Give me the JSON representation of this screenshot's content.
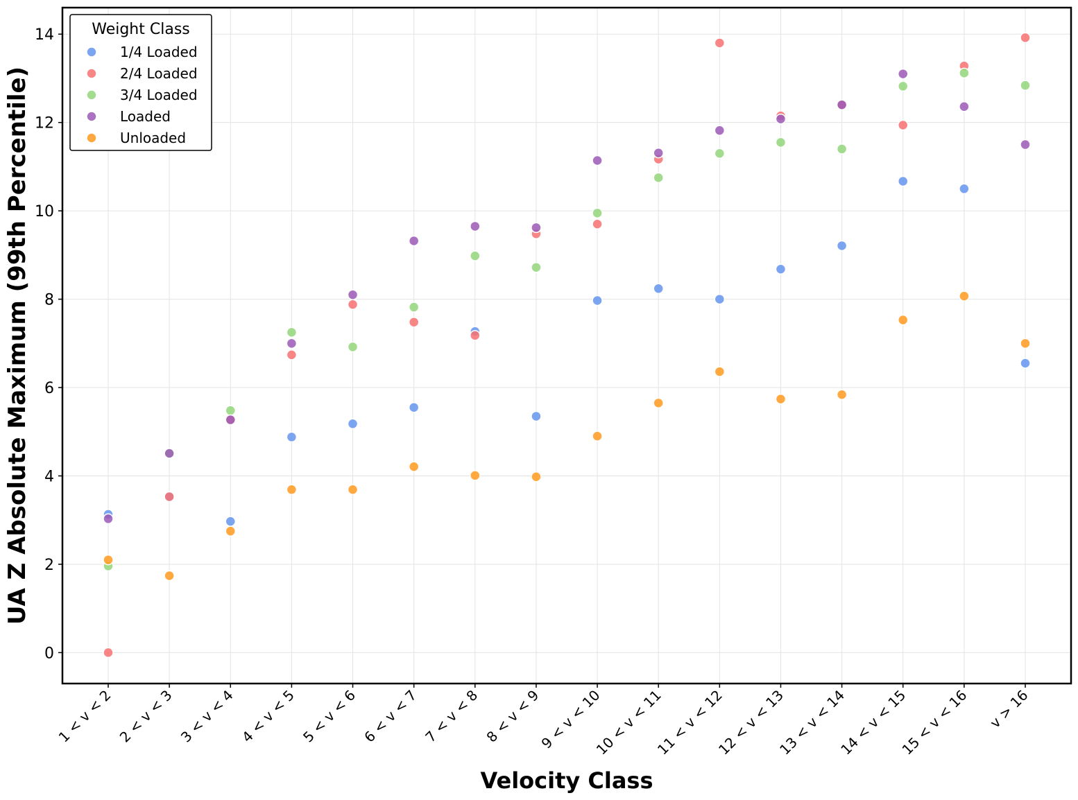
{
  "chart_data": {
    "type": "scatter",
    "xlabel": "Velocity Class",
    "ylabel": "UA Z Absolute Maximum (99th Percentile)",
    "ylim": [
      -0.7,
      14.6
    ],
    "yticks": [
      "0",
      "2",
      "4",
      "6",
      "8",
      "10",
      "12",
      "14"
    ],
    "grid": true,
    "categories": [
      "1 < v < 2",
      "2 < v < 3",
      "3 < v < 4",
      "4 < v < 5",
      "5 < v < 6",
      "6 < v < 7",
      "7 < v < 8",
      "8 < v < 9",
      "9 < v < 10",
      "10 < v < 11",
      "11 < v < 12",
      "12 < v < 13",
      "13 < v < 14",
      "14 < v < 15",
      "15 < v < 16",
      "v > 16"
    ],
    "legend": {
      "title": "Weight Class",
      "position": "top-left"
    },
    "series": [
      {
        "name": "1/4 Loaded",
        "color": "#6495ed",
        "values": [
          3.13,
          3.53,
          2.97,
          4.88,
          5.18,
          5.55,
          7.27,
          5.35,
          7.97,
          8.24,
          8.0,
          8.68,
          9.21,
          10.67,
          10.5,
          6.55
        ]
      },
      {
        "name": "2/4 Loaded",
        "color": "#f87171",
        "values": [
          0.0,
          3.53,
          5.27,
          6.74,
          7.88,
          7.48,
          7.18,
          9.48,
          9.7,
          11.17,
          13.8,
          12.15,
          12.4,
          11.94,
          13.28,
          13.92
        ]
      },
      {
        "name": "3/4 Loaded",
        "color": "#93d67a",
        "values": [
          1.96,
          4.51,
          5.48,
          7.25,
          6.92,
          7.82,
          8.98,
          8.72,
          9.95,
          10.75,
          11.3,
          11.55,
          11.4,
          12.82,
          13.12,
          12.84
        ]
      },
      {
        "name": "Loaded",
        "color": "#9b59b6",
        "values": [
          3.03,
          4.51,
          5.27,
          7.0,
          8.1,
          9.32,
          9.65,
          9.62,
          11.14,
          11.31,
          11.82,
          12.08,
          12.4,
          13.1,
          12.36,
          11.5
        ]
      },
      {
        "name": "Unloaded",
        "color": "#ff9a1f",
        "values": [
          2.1,
          1.74,
          2.75,
          3.69,
          3.69,
          4.21,
          4.01,
          3.98,
          4.9,
          5.65,
          6.36,
          5.74,
          5.84,
          7.53,
          8.07,
          7.0
        ]
      }
    ]
  }
}
